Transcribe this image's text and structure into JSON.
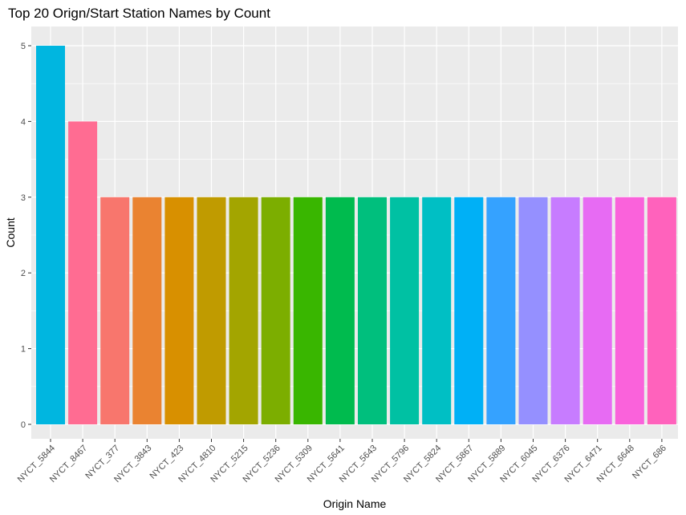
{
  "chart_data": {
    "type": "bar",
    "title": "Top 20 Orign/Start Station Names by Count",
    "xlabel": "Origin Name",
    "ylabel": "Count",
    "ylim": [
      0,
      5.25
    ],
    "yticks": [
      0,
      1,
      2,
      3,
      4,
      5
    ],
    "grid": true,
    "legend": "none",
    "categories": [
      "NYCT_5844",
      "NYCT_8467",
      "NYCT_377",
      "NYCT_3843",
      "NYCT_423",
      "NYCT_4810",
      "NYCT_5215",
      "NYCT_5236",
      "NYCT_5309",
      "NYCT_5641",
      "NYCT_5643",
      "NYCT_5796",
      "NYCT_5824",
      "NYCT_5867",
      "NYCT_5889",
      "NYCT_6045",
      "NYCT_6376",
      "NYCT_6471",
      "NYCT_6648",
      "NYCT_686"
    ],
    "values": [
      5,
      4,
      3,
      3,
      3,
      3,
      3,
      3,
      3,
      3,
      3,
      3,
      3,
      3,
      3,
      3,
      3,
      3,
      3,
      3
    ],
    "colors": [
      "#00B6E0",
      "#FF6C92",
      "#F8766D",
      "#EA8331",
      "#D89000",
      "#C09B00",
      "#A3A500",
      "#7CAE00",
      "#39B600",
      "#00BB4E",
      "#00BF7D",
      "#00C1A3",
      "#00BFC4",
      "#00B0F6",
      "#35A2FF",
      "#9590FF",
      "#C77CFF",
      "#E76BF3",
      "#FA62DB",
      "#FF62BC"
    ],
    "panel_background": "#EBEBEB",
    "grid_color": "#FFFFFF"
  }
}
